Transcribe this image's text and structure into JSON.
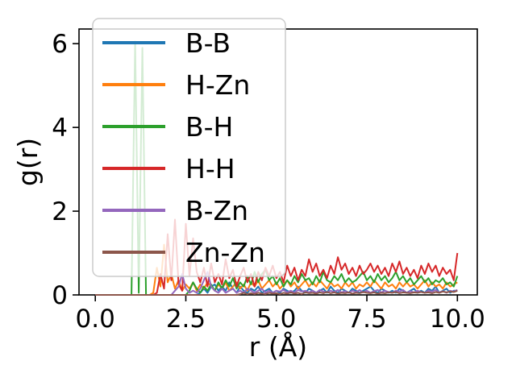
{
  "figure": {
    "background": "#ffffff"
  },
  "chart_data": {
    "type": "line",
    "title": "",
    "xlabel": "r (Å)",
    "ylabel": "g(r)",
    "xlim": [
      -0.45,
      10.55
    ],
    "ylim": [
      0,
      6.35
    ],
    "grid": false,
    "x_ticks": {
      "values": [
        0,
        2.5,
        5,
        7.5,
        10
      ],
      "labels": [
        "0.0",
        "2.5",
        "5.0",
        "7.5",
        "10.0"
      ]
    },
    "y_ticks": {
      "values": [
        0,
        2,
        4,
        6
      ],
      "labels": [
        "0",
        "2",
        "4",
        "6"
      ]
    },
    "legend": {
      "position": "upper left",
      "frame_alpha": 0.8,
      "border_color": "#cccccc"
    },
    "r_start": 0,
    "r_step": 0.1,
    "series": [
      {
        "label": "B-B",
        "color": "#1f77b4",
        "values": [
          0,
          0,
          0,
          0,
          0,
          0,
          0,
          0,
          0,
          0,
          0,
          0,
          0,
          0,
          0,
          0,
          0,
          0,
          0,
          0,
          0,
          0,
          0,
          0,
          0,
          0,
          0,
          0,
          0,
          0.05,
          0.15,
          0.05,
          0.2,
          0.25,
          0.1,
          0.2,
          0.1,
          0.3,
          0.15,
          0.05,
          0.2,
          0.1,
          0.05,
          0.15,
          0.1,
          0.2,
          0.05,
          0.1,
          0.15,
          0.05,
          0.1,
          0.05,
          0.15,
          0.1,
          0.05,
          0.1,
          0.2,
          0.1,
          0.05,
          0.15,
          0.1,
          0.05,
          0.1,
          0.15,
          0.05,
          0.2,
          0.1,
          0.05,
          0.15,
          0.1,
          0.05,
          0.15,
          0.1,
          0.05,
          0.1,
          0.15,
          0.2,
          0.1,
          0.05,
          0.15,
          0.1,
          0.05,
          0.1,
          0.05,
          0.15,
          0.1,
          0.05,
          0.1,
          0.15,
          0.05,
          0.1,
          0.05,
          0.15,
          0.1,
          0.2,
          0.05,
          0.1,
          0.15,
          0.05,
          0.1,
          0.1
        ]
      },
      {
        "label": "H-Zn",
        "color": "#ff7f0e",
        "values": [
          0,
          0,
          0,
          0,
          0,
          0,
          0,
          0,
          0,
          0,
          0,
          0,
          0,
          0,
          0,
          0,
          0.05,
          0.65,
          0.2,
          1.2,
          0.3,
          0.5,
          0.15,
          0.35,
          0.1,
          0.25,
          0.15,
          0.3,
          0.1,
          0.25,
          0.15,
          0.3,
          0.2,
          0.1,
          0.25,
          0.15,
          0.3,
          0.1,
          0.2,
          0.3,
          0.15,
          0.25,
          0.1,
          0.3,
          0.2,
          0.35,
          0.15,
          0.25,
          0.35,
          0.2,
          0.3,
          0.15,
          0.25,
          0.35,
          0.2,
          0.3,
          0.15,
          0.25,
          0.35,
          0.2,
          0.3,
          0.2,
          0.35,
          0.25,
          0.15,
          0.3,
          0.2,
          0.25,
          0.15,
          0.3,
          0.2,
          0.3,
          0.15,
          0.25,
          0.2,
          0.3,
          0.2,
          0.35,
          0.25,
          0.15,
          0.3,
          0.2,
          0.25,
          0.15,
          0.3,
          0.2,
          0.3,
          0.2,
          0.25,
          0.15,
          0.25,
          0.35,
          0.2,
          0.3,
          0.2,
          0.25,
          0.15,
          0.3,
          0.2,
          0.25,
          0.3
        ]
      },
      {
        "label": "B-H",
        "color": "#2ca02c",
        "values": [
          0,
          0,
          0,
          0,
          0,
          0,
          0,
          0,
          0,
          0,
          0,
          6.05,
          0.05,
          5.9,
          0,
          0,
          0,
          0,
          0,
          0,
          0,
          0,
          0,
          0,
          0,
          0,
          0.1,
          0.3,
          0.15,
          0.05,
          0.2,
          0.1,
          0.25,
          0.1,
          0.3,
          0.15,
          0.35,
          0.2,
          0.4,
          0.15,
          0.3,
          0.2,
          0.45,
          0.25,
          0.55,
          0.3,
          0.5,
          0.6,
          0.35,
          0.45,
          0.25,
          0.4,
          0.2,
          0.35,
          0.25,
          0.45,
          0.3,
          0.5,
          0.35,
          0.4,
          0.25,
          0.45,
          0.3,
          0.55,
          0.35,
          0.3,
          0.45,
          0.35,
          0.5,
          0.3,
          0.4,
          0.3,
          0.35,
          0.45,
          0.55,
          0.35,
          0.45,
          0.3,
          0.5,
          0.35,
          0.45,
          0.3,
          0.4,
          0.55,
          0.35,
          0.45,
          0.3,
          0.4,
          0.25,
          0.35,
          0.45,
          0.3,
          0.4,
          0.25,
          0.35,
          0.3,
          0.4,
          0.25,
          0.3,
          0.2,
          0.45
        ]
      },
      {
        "label": "H-H",
        "color": "#d62728",
        "values": [
          0,
          0,
          0,
          0,
          0,
          0,
          0,
          0,
          0,
          0,
          0,
          0,
          0,
          0,
          0,
          0,
          0,
          0.05,
          0.5,
          0.15,
          1.45,
          0.35,
          1.8,
          0.25,
          0.1,
          1.7,
          0.45,
          1.35,
          0.55,
          0.3,
          0.65,
          0.2,
          0.75,
          0.3,
          0.5,
          0.25,
          0.85,
          0.4,
          0.6,
          0.2,
          0.45,
          0.65,
          0.3,
          0.5,
          0.2,
          0.55,
          0.35,
          0.65,
          0.45,
          0.7,
          0.4,
          0.55,
          0.3,
          0.7,
          0.45,
          0.65,
          0.35,
          0.6,
          0.45,
          0.85,
          0.55,
          0.75,
          0.45,
          0.6,
          0.4,
          0.7,
          0.5,
          0.9,
          0.6,
          0.75,
          0.5,
          0.65,
          0.45,
          0.7,
          0.5,
          0.6,
          0.75,
          0.55,
          0.7,
          0.5,
          0.65,
          0.45,
          0.75,
          0.55,
          0.8,
          0.5,
          0.65,
          0.45,
          0.6,
          0.4,
          0.7,
          0.5,
          0.75,
          0.55,
          0.7,
          0.45,
          0.65,
          0.5,
          0.6,
          0.35,
          1.0
        ]
      },
      {
        "label": "B-Zn",
        "color": "#9467bd",
        "values": [
          0,
          0,
          0,
          0,
          0,
          0,
          0,
          0,
          0,
          0,
          0,
          0,
          0,
          0,
          0,
          0,
          0,
          0,
          0,
          0,
          0,
          0,
          0.1,
          0.2,
          0.5,
          0.15,
          0.05,
          0.1,
          0.05,
          0.15,
          0.35,
          0.55,
          0.2,
          0.1,
          0.05,
          0.15,
          0.05,
          0.1,
          0.15,
          0.05,
          0.1,
          0.05,
          0.15,
          0.1,
          0.05,
          0.1,
          0.15,
          0.05,
          0.1,
          0.05,
          0.1,
          0.08,
          0.12,
          0.06,
          0.1,
          0.05,
          0.12,
          0.08,
          0.1,
          0.06,
          0.1,
          0.05,
          0.12,
          0.08,
          0.06,
          0.1,
          0.07,
          0.12,
          0.06,
          0.09,
          0.05,
          0.1,
          0.07,
          0.12,
          0.06,
          0.1,
          0.05,
          0.09,
          0.12,
          0.06,
          0.1,
          0.07,
          0.05,
          0.1,
          0.08,
          0.12,
          0.05,
          0.09,
          0.06,
          0.1,
          0.07,
          0.05,
          0.1,
          0.08,
          0.12,
          0.06,
          0.09,
          0.05,
          0.1,
          0.08,
          0.12
        ]
      },
      {
        "label": "Zn-Zn",
        "color": "#8c564b",
        "values": [
          0,
          0,
          0,
          0,
          0,
          0,
          0,
          0,
          0,
          0,
          0,
          0,
          0,
          0,
          0,
          0,
          0,
          0,
          0,
          0,
          0,
          0,
          0,
          0,
          0,
          0,
          0,
          0,
          0,
          0,
          0,
          0,
          0,
          0,
          0,
          0,
          0,
          0,
          0,
          0,
          0.02,
          0.05,
          0.02,
          0.04,
          0.02,
          0.05,
          0.03,
          0.02,
          0.05,
          0.03,
          0.04,
          0.02,
          0.05,
          0.03,
          0.06,
          0.03,
          0.05,
          0.02,
          0.06,
          0.04,
          0.05,
          0.03,
          0.06,
          0.04,
          0.07,
          0.04,
          0.06,
          0.03,
          0.05,
          0.04,
          0.06,
          0.03,
          0.05,
          0.04,
          0.07,
          0.05,
          0.04,
          0.06,
          0.03,
          0.05,
          0.04,
          0.06,
          0.05,
          0.07,
          0.04,
          0.06,
          0.05,
          0.04,
          0.06,
          0.05,
          0.07,
          0.05,
          0.06,
          0.04,
          0.07,
          0.05,
          0.08,
          0.06,
          0.08,
          0.07,
          0.1
        ]
      }
    ]
  }
}
